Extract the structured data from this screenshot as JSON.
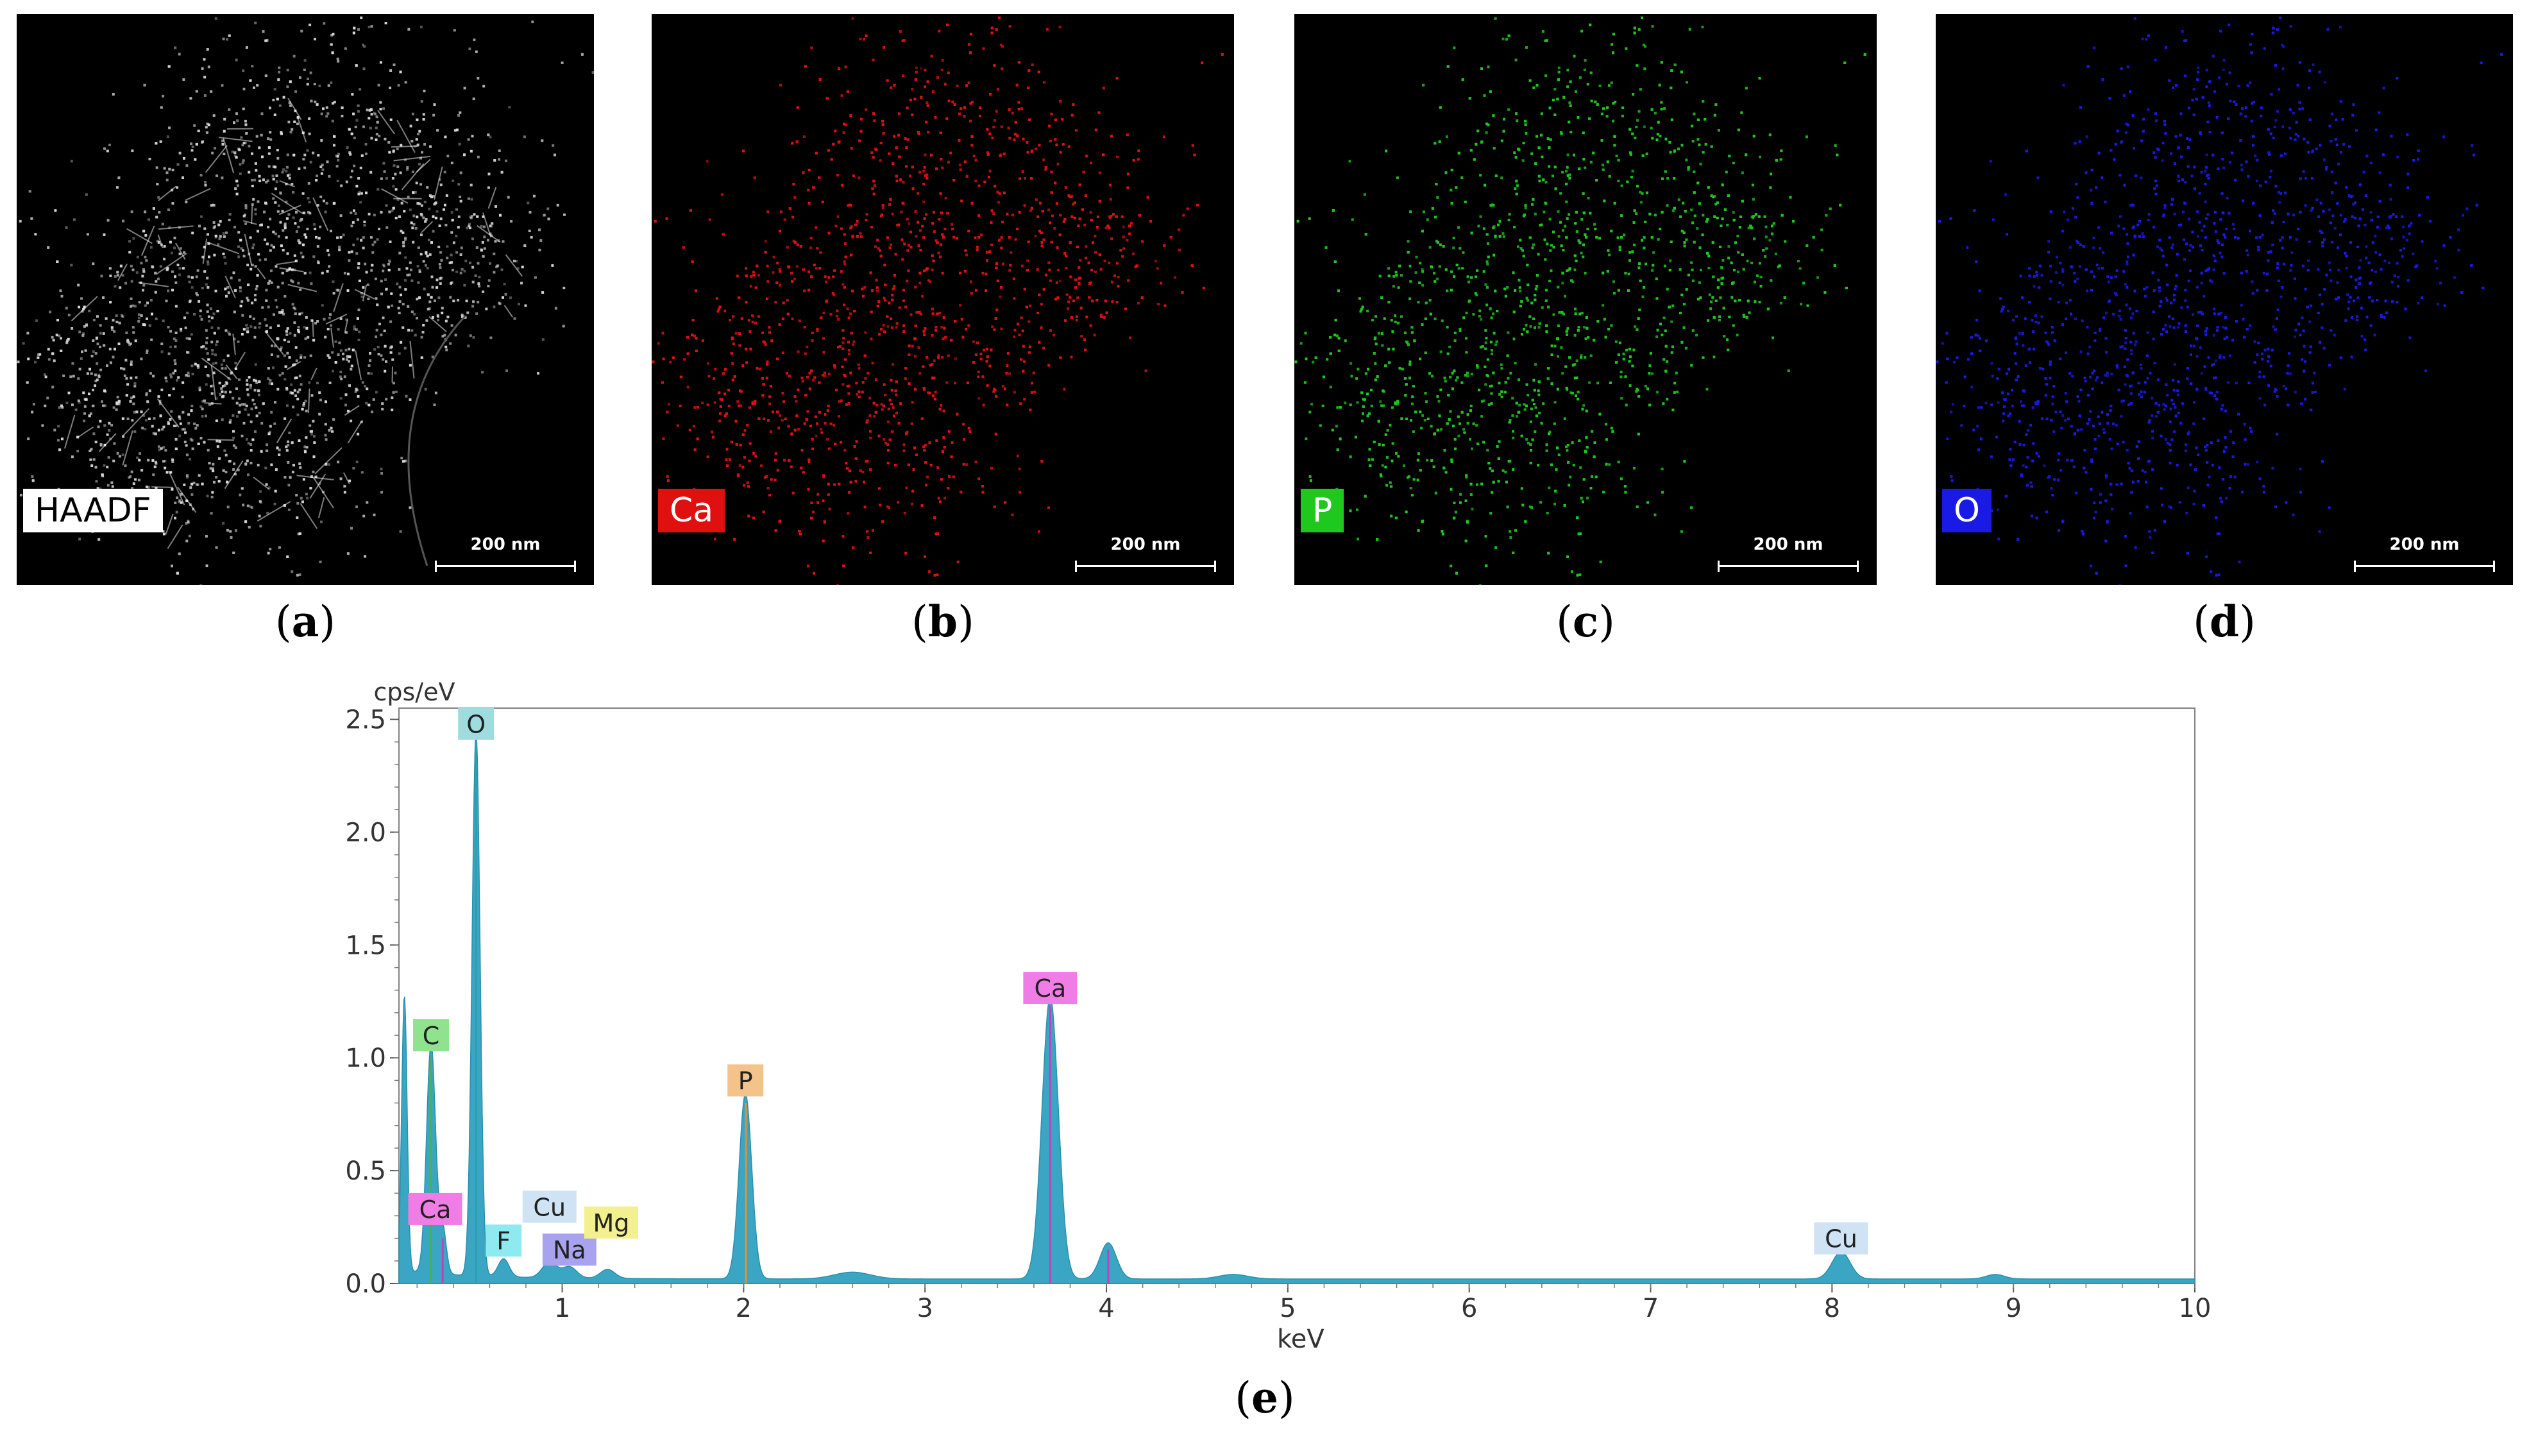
{
  "panels": [
    {
      "id": "a",
      "caption_letter": "a",
      "label": "HAADF",
      "scale": "200 nm",
      "color": "#ffffff",
      "label_bg": "#ffffff",
      "label_fg": "#000000"
    },
    {
      "id": "b",
      "caption_letter": "b",
      "label": "Ca",
      "scale": "200 nm",
      "color": "#e01010",
      "label_bg": "#e01010",
      "label_fg": "#ffffff"
    },
    {
      "id": "c",
      "caption_letter": "c",
      "label": "P",
      "scale": "200 nm",
      "color": "#1ec81e",
      "label_bg": "#1ec81e",
      "label_fg": "#ffffff"
    },
    {
      "id": "d",
      "caption_letter": "d",
      "label": "O",
      "scale": "200 nm",
      "color": "#1a1ae6",
      "label_bg": "#1a1ae6",
      "label_fg": "#ffffff"
    }
  ],
  "caption_e": "e",
  "chart_data": {
    "type": "line",
    "ylabel": "cps/eV",
    "xlabel": "keV",
    "xlim": [
      0.1,
      10
    ],
    "ylim": [
      0,
      2.55
    ],
    "x_ticks": [
      1,
      2,
      3,
      4,
      5,
      6,
      7,
      8,
      9,
      10
    ],
    "y_ticks": [
      "0.0",
      "0.5",
      "1.0",
      "1.5",
      "2.0",
      "2.5"
    ],
    "y_tick_values": [
      0,
      0.5,
      1.0,
      1.5,
      2.0,
      2.5
    ],
    "series_color": "#3aa6c4",
    "peaks": [
      {
        "x": 0.13,
        "y": 1.22,
        "w": 0.015
      },
      {
        "x": 0.277,
        "y": 1.02,
        "w": 0.025
      },
      {
        "x": 0.341,
        "y": 0.2,
        "w": 0.02
      },
      {
        "x": 0.525,
        "y": 2.42,
        "w": 0.022
      },
      {
        "x": 0.677,
        "y": 0.08,
        "w": 0.03
      },
      {
        "x": 0.93,
        "y": 0.07,
        "w": 0.04
      },
      {
        "x": 1.04,
        "y": 0.05,
        "w": 0.04
      },
      {
        "x": 1.25,
        "y": 0.04,
        "w": 0.04
      },
      {
        "x": 2.01,
        "y": 0.82,
        "w": 0.035
      },
      {
        "x": 2.6,
        "y": 0.03,
        "w": 0.1
      },
      {
        "x": 3.69,
        "y": 1.25,
        "w": 0.045
      },
      {
        "x": 4.01,
        "y": 0.16,
        "w": 0.045
      },
      {
        "x": 4.7,
        "y": 0.02,
        "w": 0.08
      },
      {
        "x": 8.05,
        "y": 0.12,
        "w": 0.05
      },
      {
        "x": 8.9,
        "y": 0.02,
        "w": 0.05
      }
    ],
    "baseline": 0.02,
    "markers": [
      {
        "x": 0.277,
        "y": 1.0,
        "color": "#4caf50"
      },
      {
        "x": 0.341,
        "y": 0.2,
        "color": "#c040c0"
      },
      {
        "x": 0.525,
        "y": 2.4,
        "color": "#2aa0b0"
      },
      {
        "x": 2.013,
        "y": 0.8,
        "color": "#e09030"
      },
      {
        "x": 3.69,
        "y": 1.23,
        "color": "#c040c0"
      },
      {
        "x": 4.01,
        "y": 0.15,
        "color": "#c040c0"
      }
    ],
    "annotations": [
      {
        "text": "O",
        "x": 0.525,
        "y": 2.48,
        "bg": "#9fdce0"
      },
      {
        "text": "C",
        "x": 0.277,
        "y": 1.1,
        "bg": "#8fe38f"
      },
      {
        "text": "Ca",
        "x": 0.3,
        "y": 0.33,
        "bg": "#f07de6"
      },
      {
        "text": "Cu",
        "x": 0.93,
        "y": 0.34,
        "bg": "#cfe3f5"
      },
      {
        "text": "F",
        "x": 0.677,
        "y": 0.19,
        "bg": "#8fe9f0"
      },
      {
        "text": "Na",
        "x": 1.04,
        "y": 0.15,
        "bg": "#a9a3ef"
      },
      {
        "text": "Mg",
        "x": 1.27,
        "y": 0.27,
        "bg": "#f3f08f"
      },
      {
        "text": "P",
        "x": 2.01,
        "y": 0.9,
        "bg": "#f3c38a"
      },
      {
        "text": "Ca",
        "x": 3.69,
        "y": 1.31,
        "bg": "#f07de6"
      },
      {
        "text": "Cu",
        "x": 8.05,
        "y": 0.2,
        "bg": "#cfe3f5"
      }
    ]
  }
}
